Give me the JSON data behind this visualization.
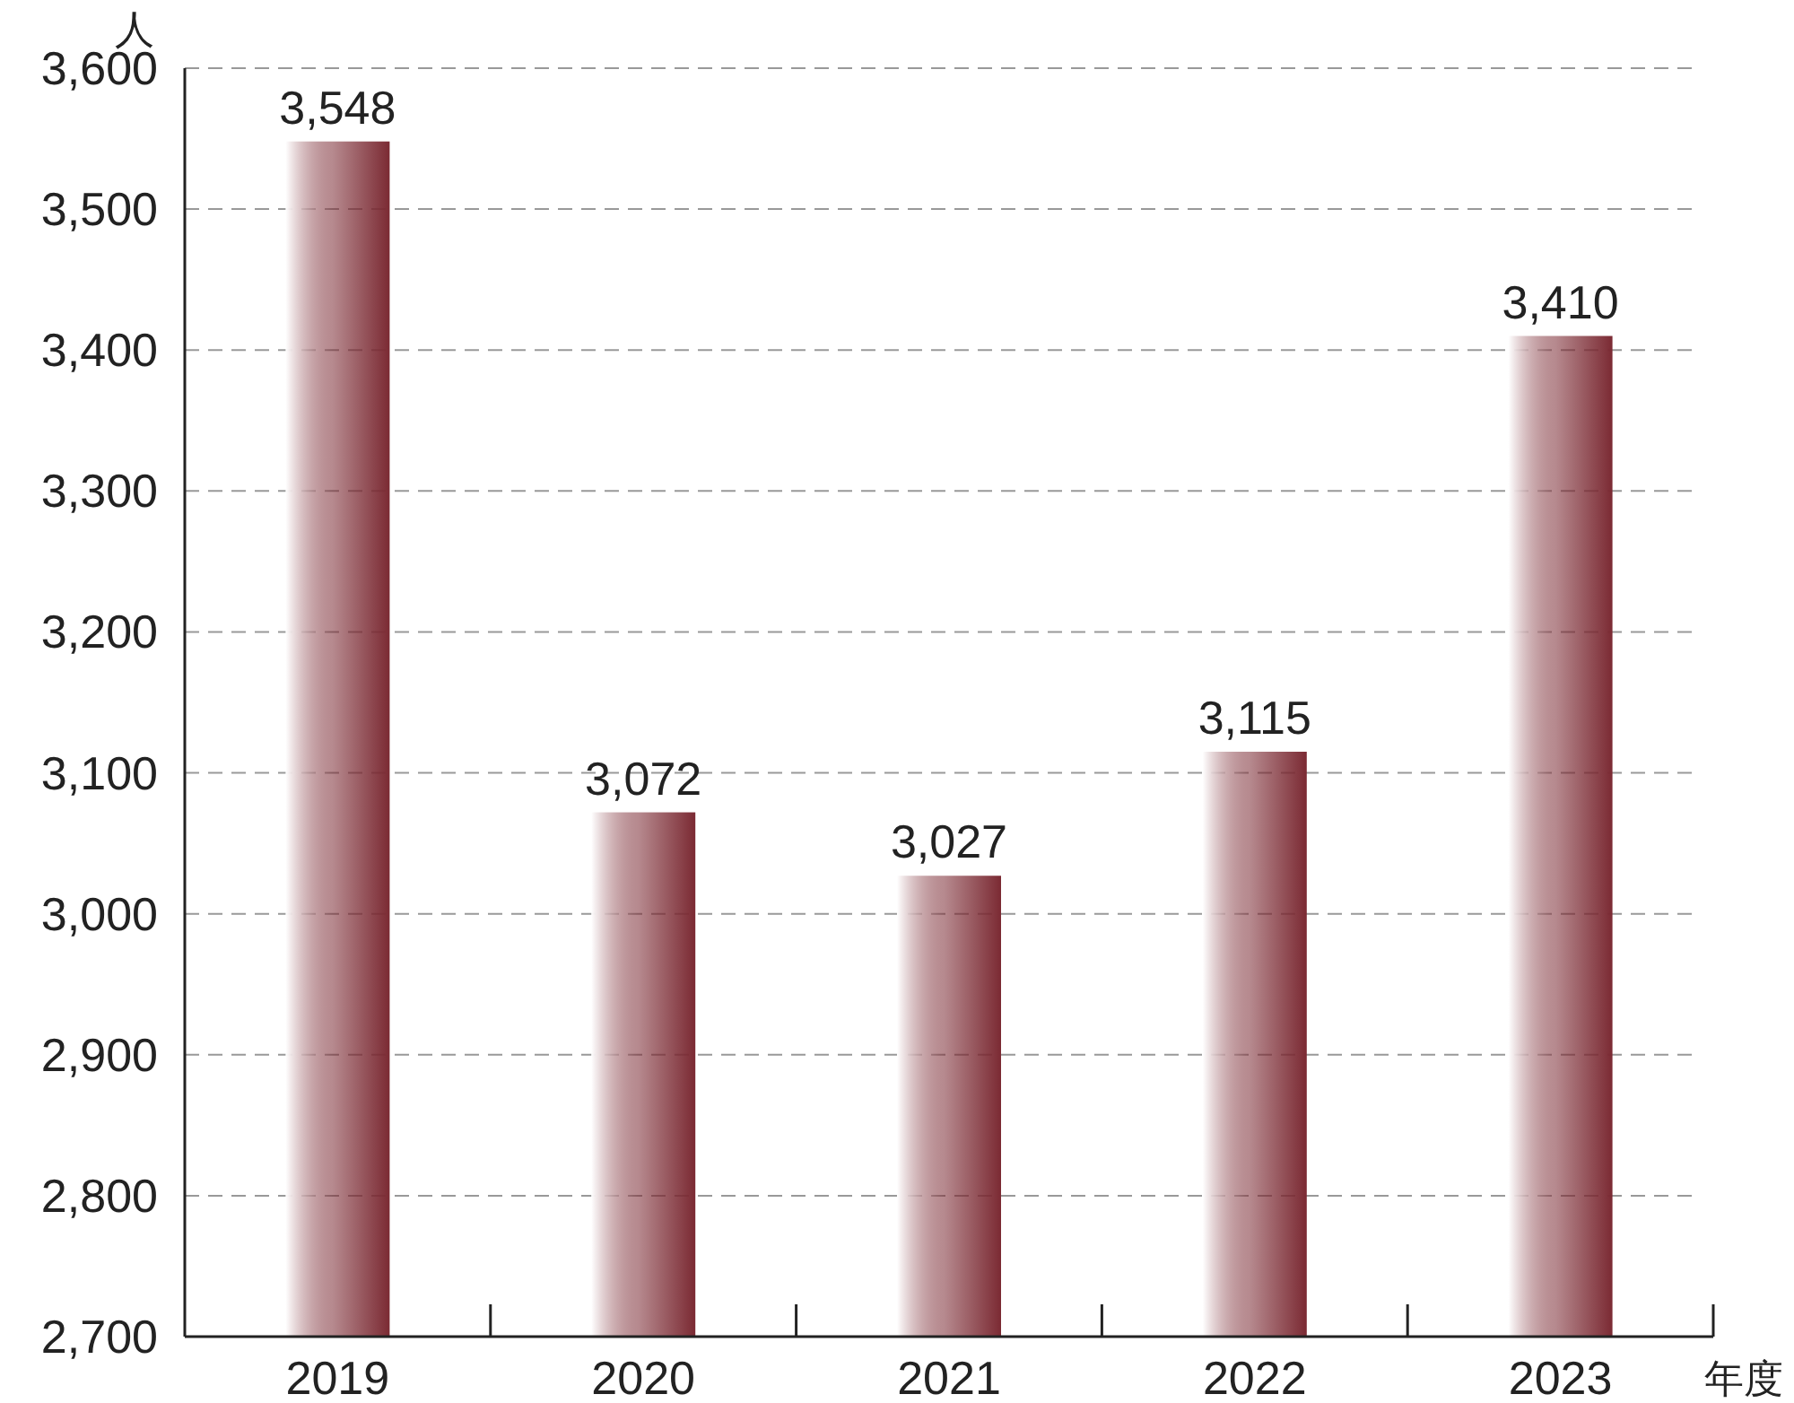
{
  "chart_data": {
    "type": "bar",
    "ylabel": "人",
    "xlabel": "年度",
    "categories": [
      "2019",
      "2020",
      "2021",
      "2022",
      "2023"
    ],
    "values": [
      3548,
      3072,
      3027,
      3115,
      3410
    ],
    "color": "#7b2a33",
    "ylim": [
      2700,
      3600
    ],
    "yticks": [
      {
        "value": 2700,
        "label": "2,700"
      },
      {
        "value": 2800,
        "label": "2,800"
      },
      {
        "value": 2900,
        "label": "2,900"
      },
      {
        "value": 3000,
        "label": "3,000"
      },
      {
        "value": 3100,
        "label": "3,100"
      },
      {
        "value": 3200,
        "label": "3,200"
      },
      {
        "value": 3300,
        "label": "3,300"
      },
      {
        "value": 3400,
        "label": "3,400"
      },
      {
        "value": 3500,
        "label": "3,500"
      },
      {
        "value": 3600,
        "label": "3,600"
      }
    ],
    "value_labels": [
      "3,548",
      "3,072",
      "3,027",
      "3,115",
      "3,410"
    ],
    "grid": "y"
  }
}
